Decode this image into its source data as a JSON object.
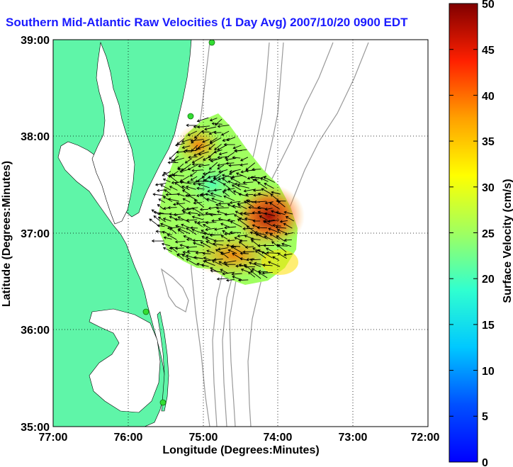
{
  "title": "Southern Mid-Atlantic Raw Velocities (1 Day Avg) 2007/10/20 0900 EDT",
  "xlabel": "Longitude (Degrees:Minutes)",
  "ylabel": "Latitude (Degrees:Minutes)",
  "x_ticks": [
    "77:00",
    "76:00",
    "75:00",
    "74:00",
    "73:00",
    "72:00"
  ],
  "y_ticks": [
    "39:00",
    "38:00",
    "37:00",
    "36:00",
    "35:00"
  ],
  "colorbar": {
    "label": "Surface Velocity (cm/s)",
    "ticks": [
      "0",
      "5",
      "10",
      "15",
      "20",
      "25",
      "30",
      "35",
      "40",
      "45",
      "50"
    ],
    "range": [
      0,
      50
    ]
  },
  "colors": {
    "land": "#5ff5a8",
    "water": "#ffffff",
    "bathymetry": "#999999",
    "station": "#33dd33"
  }
}
